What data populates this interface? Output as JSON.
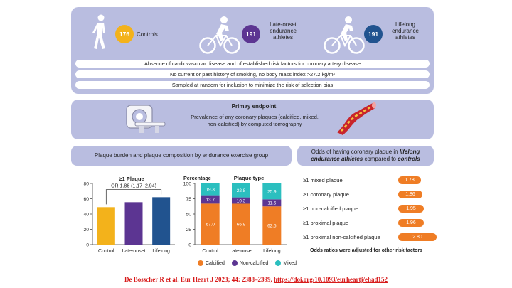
{
  "groups": [
    {
      "count": "176",
      "label": "Controls",
      "color": "#f3b21b"
    },
    {
      "count": "191",
      "label": "Late-onset endurance athletes",
      "color": "#5c3592"
    },
    {
      "count": "191",
      "label": "Lifelong endurance athletes",
      "color": "#21538f"
    }
  ],
  "criteria": [
    "Absence of cardiovascular disease and of established risk factors for coronary artery disease",
    "No current or past history of smoking, no body mass index >27.2 kg/m²",
    "Sampled at random for inclusion to minimize the risk of selection bias"
  ],
  "endpoint": {
    "title": "Primay endpoint",
    "text": "Prevalence of any coronary plaques (calcified, mixed, non-calcified) by computed tomography"
  },
  "left_header": "Plaque burden and plaque composition by endurance exercise group",
  "right_header_plain1": "Odds of having coronary plaque in ",
  "right_header_em1": "lifelong endurance athletes",
  "right_header_plain2": " compared to ",
  "right_header_em2": "controls",
  "chart_data": [
    {
      "type": "bar",
      "title": "≥1 Plaque",
      "categories": [
        "Control",
        "Late-onset",
        "Lifelong"
      ],
      "values": [
        49,
        55.5,
        62
      ],
      "colors": [
        "#f3b21b",
        "#5c3592",
        "#21538f"
      ],
      "ylim": [
        0,
        80
      ],
      "yticks": [
        "0",
        "20",
        "40",
        "60",
        "80"
      ],
      "annotation": "OR 1.86 (1.17–2.94)"
    },
    {
      "type": "bar",
      "stacked": true,
      "title": "Plaque type",
      "ylabel": "Percentage",
      "categories": [
        "Control",
        "Late-onset",
        "Lifelong"
      ],
      "ylim": [
        0,
        100
      ],
      "yticks": [
        "0",
        "25",
        "50",
        "75",
        "100"
      ],
      "series": [
        {
          "name": "Calcified",
          "color": "#ef7d25",
          "values": [
            67.0,
            66.9,
            62.5
          ],
          "labels": [
            "67.0",
            "66.9",
            "62.5"
          ]
        },
        {
          "name": "Non-calcified",
          "color": "#5c3592",
          "values": [
            13.7,
            10.3,
            11.6
          ],
          "labels": [
            "13.7",
            "10.3",
            "11.6"
          ]
        },
        {
          "name": "Mixed",
          "color": "#2bbfbf",
          "values": [
            19.3,
            22.8,
            25.9
          ],
          "labels": [
            "19.3",
            "22.8",
            "25.9"
          ]
        }
      ]
    }
  ],
  "odds": [
    {
      "label": "≥1 mixed plaque",
      "value": "1.78"
    },
    {
      "label": "≥1 coronary plaque",
      "value": "1.86"
    },
    {
      "label": "≥1 non-calcified plaque",
      "value": "1.95"
    },
    {
      "label": "≥1 proximal plaque",
      "value": "1.96"
    },
    {
      "label": "≥1 proximal non-calcified plaque",
      "value": "2.80"
    }
  ],
  "odds_note": "Odds ratios were adjusted for other risk factors",
  "citation_text": "De Bosscher R et al. Eur Heart J 2023;  44: 2388–2399, ",
  "citation_link": "https://doi.org/10.1093/eurheartj/ehad152"
}
